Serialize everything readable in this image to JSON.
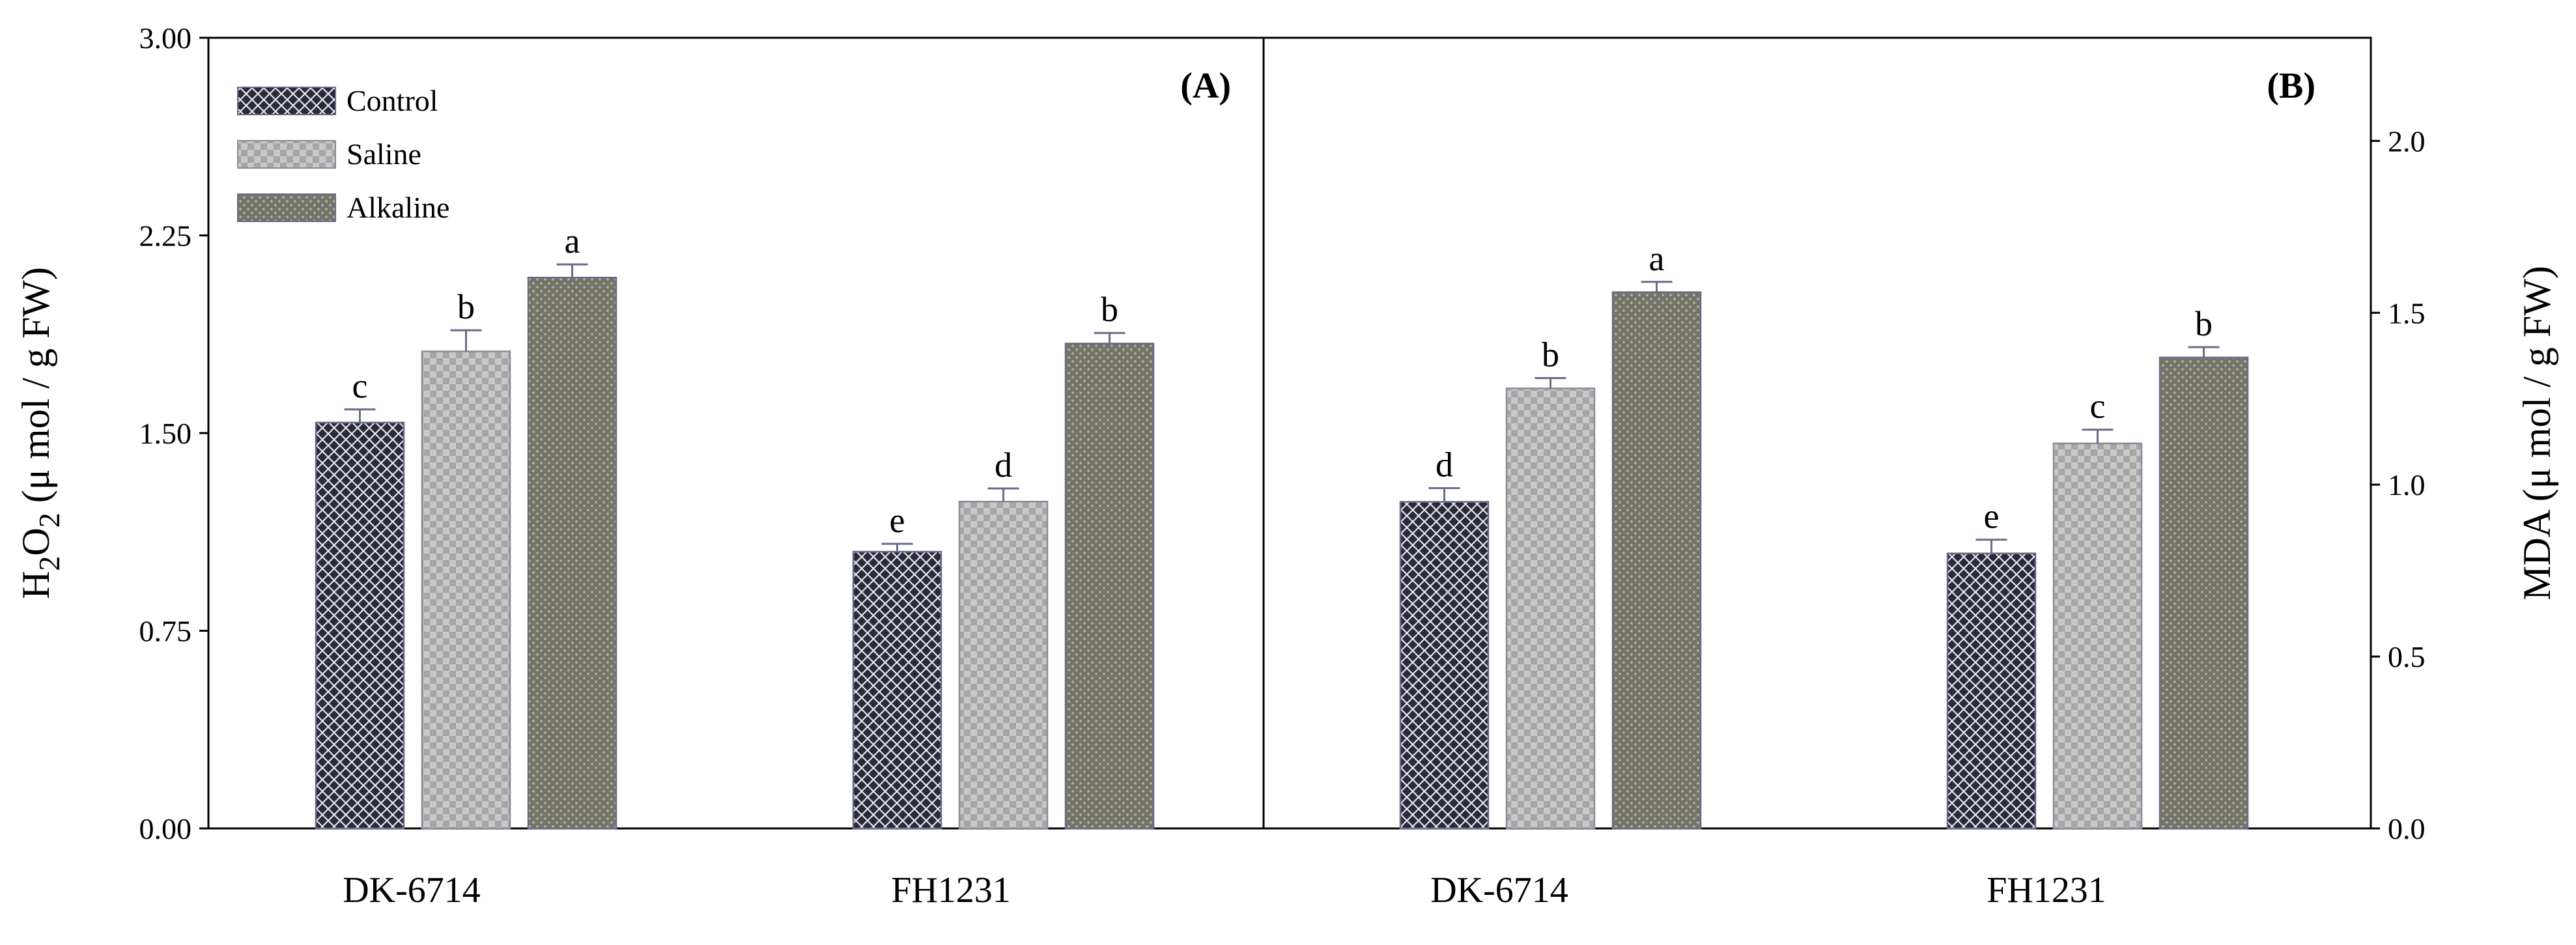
{
  "chart_data": [
    {
      "type": "bar",
      "panel_label": "(A)",
      "ylabel_main": "H",
      "ylabel_sub1": "2",
      "ylabel_mid": "O",
      "ylabel_sub2": "2",
      "ylabel_rest": " (μ mol / g FW)",
      "ylabel_position": "left",
      "ylim": [
        0,
        3.0
      ],
      "yticks": [
        {
          "value": 0,
          "label": "0.00"
        },
        {
          "value": 0.75,
          "label": "0.75"
        },
        {
          "value": 1.5,
          "label": "1.50"
        },
        {
          "value": 2.25,
          "label": "2.25"
        },
        {
          "value": 3.0,
          "label": "3.00"
        }
      ],
      "categories": [
        "DK-6714",
        "FH1231"
      ],
      "series": [
        {
          "name": "Control",
          "values": [
            1.54,
            1.05
          ],
          "errors": [
            0.05,
            0.03
          ],
          "letters": [
            "c",
            "e"
          ]
        },
        {
          "name": "Saline",
          "values": [
            1.81,
            1.24
          ],
          "errors": [
            0.08,
            0.05
          ],
          "letters": [
            "b",
            "d"
          ]
        },
        {
          "name": "Alkaline",
          "values": [
            2.09,
            1.84
          ],
          "errors": [
            0.05,
            0.04
          ],
          "letters": [
            "a",
            "b"
          ]
        }
      ],
      "legend_placement": "top-left"
    },
    {
      "type": "bar",
      "panel_label": "(B)",
      "ylabel": "MDA (μ mol / g FW)",
      "ylabel_position": "right",
      "ylim": [
        0,
        2.3
      ],
      "yticks": [
        {
          "value": 0,
          "label": "0.0"
        },
        {
          "value": 0.5,
          "label": "0.5"
        },
        {
          "value": 1.0,
          "label": "1.0"
        },
        {
          "value": 1.5,
          "label": "1.5"
        },
        {
          "value": 2.0,
          "label": "2.0"
        }
      ],
      "categories": [
        "DK-6714",
        "FH1231"
      ],
      "series": [
        {
          "name": "Control",
          "values": [
            0.95,
            0.8
          ],
          "errors": [
            0.04,
            0.04
          ],
          "letters": [
            "d",
            "e"
          ]
        },
        {
          "name": "Saline",
          "values": [
            1.28,
            1.12
          ],
          "errors": [
            0.03,
            0.04
          ],
          "letters": [
            "b",
            "c"
          ]
        },
        {
          "name": "Alkaline",
          "values": [
            1.56,
            1.37
          ],
          "errors": [
            0.03,
            0.03
          ],
          "letters": [
            "a",
            "b"
          ]
        }
      ]
    }
  ],
  "legend": {
    "items": [
      {
        "name": "Control",
        "pattern": "crosshatch-dark"
      },
      {
        "name": "Saline",
        "pattern": "checker-light"
      },
      {
        "name": "Alkaline",
        "pattern": "dots-dark"
      }
    ]
  },
  "colors": {
    "control_fill": "#2a2a3a",
    "control_line": "#e8e8f0",
    "saline_a": "#c8c8c8",
    "saline_b": "#a6a6a6",
    "alkaline_fill": "#747468",
    "alkaline_dot": "#b8b8a8",
    "bar_stroke": "#6a6a8a",
    "axis": "#000000"
  }
}
